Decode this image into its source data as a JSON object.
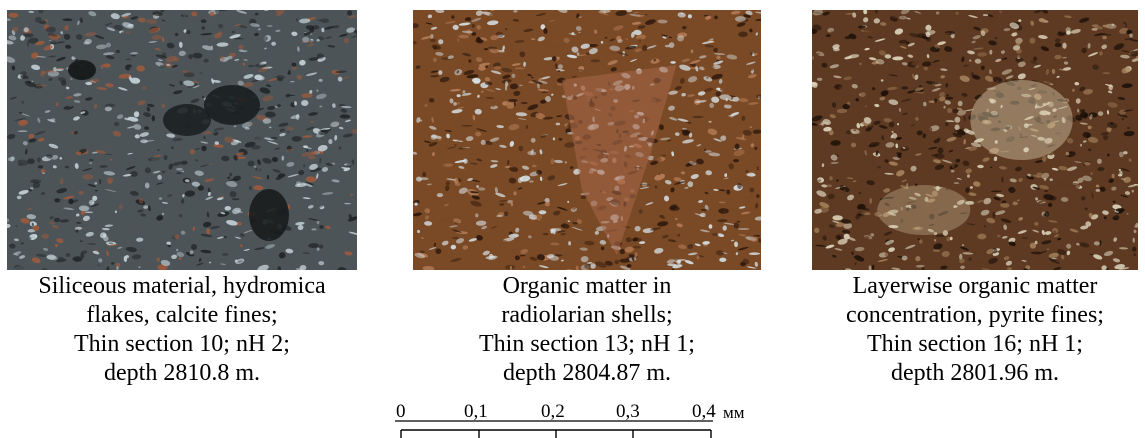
{
  "panels": [
    {
      "caption": [
        "Siliceous material, hydromica",
        "flakes, calcite fines;",
        "Thin section 10; nH 2;",
        "depth 2810.8 m."
      ],
      "palette": {
        "base": "#4d5457",
        "dark": "#1e2224",
        "light": "#c9d6dc",
        "accent": "#a05a3c"
      }
    },
    {
      "caption": [
        "Organic matter in",
        "radiolarian shells;",
        "Thin section 13; nH 1;",
        "depth 2804.87 m."
      ],
      "palette": {
        "base": "#7a4a26",
        "dark": "#2a160b",
        "light": "#dbe8ef",
        "accent": "#b8805a"
      }
    },
    {
      "caption": [
        "Layerwise organic matter",
        "concentration, pyrite fines;",
        "Thin section 16; nH 1;",
        "depth 2801.96 m."
      ],
      "palette": {
        "base": "#5e3a22",
        "dark": "#1a0f08",
        "light": "#e3dcc4",
        "accent": "#a8845e"
      }
    }
  ],
  "scale_bar": {
    "ticks": [
      "0",
      "0,1",
      "0,2",
      "0,3",
      "0,4"
    ],
    "unit": "мм"
  }
}
